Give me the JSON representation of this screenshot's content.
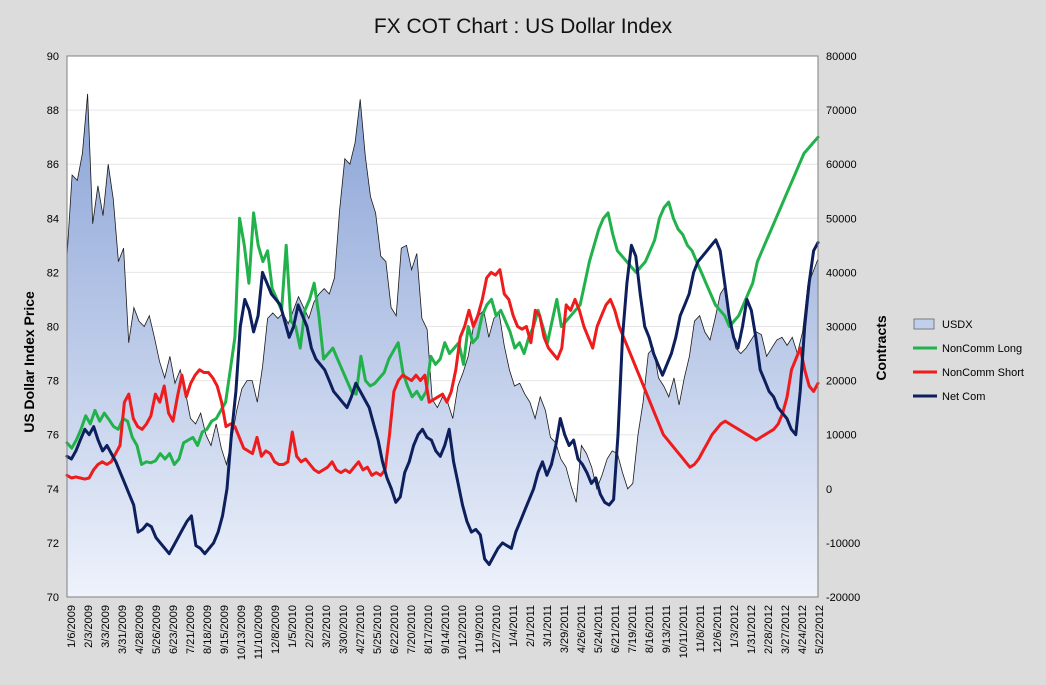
{
  "chart_data": {
    "type": "line",
    "title": "FX COT Chart : US Dollar Index",
    "ylabel": "US Dollar Index Price",
    "y2label": "Contracts",
    "ylim": [
      70,
      90
    ],
    "y2lim": [
      -20000,
      80000
    ],
    "y_ticks": [
      "70",
      "72",
      "74",
      "76",
      "78",
      "80",
      "82",
      "84",
      "86",
      "88",
      "90"
    ],
    "y2_ticks": [
      "-20000",
      "-10000",
      "0",
      "10000",
      "20000",
      "30000",
      "40000",
      "50000",
      "60000",
      "70000",
      "80000"
    ],
    "x_ticks": [
      "1/6/2009",
      "2/3/2009",
      "3/3/2009",
      "3/31/2009",
      "4/28/2009",
      "5/26/2009",
      "6/23/2009",
      "7/21/2009",
      "8/18/2009",
      "9/15/2009",
      "10/13/2009",
      "11/10/2009",
      "12/8/2009",
      "1/5/2010",
      "2/2/2010",
      "3/2/2010",
      "3/30/2010",
      "4/27/2010",
      "5/25/2010",
      "6/22/2010",
      "7/20/2010",
      "8/17/2010",
      "9/14/2010",
      "10/12/2010",
      "11/9/2010",
      "12/7/2010",
      "1/4/2011",
      "2/1/2011",
      "3/1/2011",
      "3/29/2011",
      "4/26/2011",
      "5/24/2011",
      "6/21/2011",
      "7/19/2011",
      "8/16/2011",
      "9/13/2011",
      "10/11/2011",
      "11/8/2011",
      "12/6/2011",
      "1/3/2012",
      "1/31/2012",
      "2/28/2012",
      "3/27/2012",
      "4/24/2012",
      "5/22/2012"
    ],
    "legend_position": "right",
    "series": [
      {
        "name": "USDX",
        "axis": "left",
        "style": "area",
        "color": "#8fa8d8",
        "values": [
          82.6,
          85.6,
          85.4,
          86.4,
          88.6,
          83.8,
          85.2,
          84.1,
          86.0,
          84.7,
          82.4,
          82.9,
          79.4,
          80.7,
          80.2,
          80.0,
          80.4,
          79.6,
          78.7,
          78.1,
          78.9,
          77.9,
          78.4,
          77.6,
          76.6,
          76.4,
          76.8,
          76.0,
          75.6,
          76.4,
          75.5,
          74.9,
          75.8,
          76.9,
          77.7,
          78.0,
          78.0,
          77.2,
          78.5,
          80.3,
          80.5,
          80.3,
          80.5,
          80.1,
          80.6,
          81.1,
          80.7,
          80.3,
          80.9,
          81.2,
          81.4,
          81.2,
          81.8,
          84.3,
          86.2,
          86.0,
          86.8,
          88.4,
          86.3,
          84.8,
          84.2,
          82.6,
          82.4,
          80.7,
          80.4,
          82.9,
          83.0,
          82.1,
          82.7,
          80.3,
          79.9,
          77.3,
          77.0,
          77.4,
          77.2,
          76.6,
          77.8,
          78.3,
          78.9,
          80.0,
          80.4,
          80.6,
          79.6,
          80.3,
          80.5,
          79.3,
          78.4,
          77.8,
          77.9,
          77.5,
          77.2,
          76.6,
          77.4,
          76.9,
          75.9,
          75.7,
          75.1,
          74.8,
          74.1,
          73.5,
          75.6,
          75.3,
          74.8,
          74.0,
          74.5,
          75.1,
          75.4,
          75.3,
          74.6,
          74.0,
          74.2,
          76.0,
          77.2,
          79.0,
          79.2,
          78.1,
          77.8,
          77.4,
          78.1,
          77.1,
          78.1,
          78.9,
          80.2,
          80.4,
          79.8,
          79.5,
          80.3,
          81.2,
          81.5,
          80.2,
          79.2,
          79.0,
          79.2,
          79.5,
          79.8,
          79.7,
          78.9,
          79.2,
          79.5,
          79.6,
          79.3,
          79.6,
          79.0,
          79.8,
          81.5,
          82.0,
          82.5
        ]
      },
      {
        "name": "NonComm Long",
        "axis": "right",
        "style": "line",
        "color": "#22b24c",
        "values": [
          8500,
          7500,
          9000,
          11000,
          13500,
          12000,
          14500,
          12500,
          14000,
          12800,
          11500,
          11000,
          13000,
          12500,
          9500,
          8000,
          4500,
          5000,
          4800,
          5200,
          6500,
          5500,
          6500,
          4500,
          5500,
          8500,
          9000,
          9500,
          8000,
          10500,
          11000,
          12500,
          13000,
          14500,
          16000,
          22000,
          28000,
          50000,
          45000,
          38000,
          51000,
          45000,
          42000,
          44000,
          37000,
          35000,
          33000,
          45000,
          31000,
          30000,
          26000,
          33000,
          35000,
          38000,
          32000,
          24000,
          25000,
          26000,
          24000,
          22000,
          20000,
          18000,
          17500,
          24500,
          20000,
          19000,
          19500,
          20500,
          21500,
          24000,
          25500,
          27000,
          21500,
          19000,
          17000,
          18000,
          16500,
          18000,
          24500,
          23000,
          24000,
          27000,
          25000,
          26000,
          27000,
          23000,
          30000,
          27000,
          28000,
          32000,
          34000,
          35000,
          32000,
          33000,
          31000,
          29000,
          26000,
          27000,
          25000,
          28000,
          30000,
          33000,
          30000,
          27000,
          31000,
          35000,
          30000,
          31000,
          32000,
          33000,
          34000,
          38000,
          42000,
          45000,
          48000,
          50000,
          51000,
          47000,
          44000,
          43000,
          42000,
          41000,
          40000,
          41000,
          42000,
          44000,
          46000,
          50000,
          52000,
          53000,
          50000,
          48000,
          47000,
          45000,
          44000,
          42000,
          40000,
          38000,
          36000,
          34000,
          33000,
          32000,
          30000,
          31000,
          32000,
          34000,
          36000,
          38000,
          42000,
          44000,
          46000,
          48000,
          50000,
          52000,
          54000,
          56000,
          58000,
          60000,
          62000,
          63000,
          64000,
          65000
        ]
      },
      {
        "name": "NonComm Short",
        "axis": "right",
        "style": "line",
        "color": "#ee1c1c",
        "values": [
          2500,
          2000,
          2200,
          2000,
          1800,
          2000,
          3500,
          4500,
          5000,
          4500,
          5000,
          6500,
          8000,
          16000,
          17500,
          13000,
          11500,
          11000,
          12000,
          13500,
          17500,
          16000,
          19000,
          14000,
          12500,
          17000,
          21000,
          17000,
          19500,
          21000,
          22000,
          21500,
          21500,
          20500,
          19000,
          16000,
          11500,
          12000,
          11500,
          9500,
          7500,
          7000,
          6500,
          9500,
          6000,
          7000,
          6500,
          5000,
          4500,
          4500,
          5000,
          10500,
          6000,
          5000,
          5500,
          4500,
          3500,
          3000,
          3500,
          4000,
          5000,
          3500,
          3000,
          3500,
          3000,
          4000,
          5000,
          3500,
          4000,
          2500,
          3000,
          2500,
          3500,
          10000,
          18000,
          20000,
          21000,
          20500,
          20000,
          21000,
          20000,
          21000,
          16000,
          16500,
          17000,
          17500,
          16000,
          18000,
          22000,
          28000,
          30000,
          33000,
          30000,
          32000,
          35000,
          39000,
          40000,
          39500,
          40500,
          36000,
          35000,
          32000,
          30000,
          29500,
          30000,
          27000,
          33000,
          32000,
          28000,
          26000,
          25000,
          24000,
          26000,
          34000,
          33000,
          35000,
          33000,
          30000,
          28000,
          26000,
          30000,
          32000,
          34000,
          35000,
          33000,
          30000,
          28000,
          26000,
          24000,
          22000,
          20000,
          18000,
          16000,
          14000,
          12000,
          10000,
          9000,
          8000,
          7000,
          6000,
          5000,
          4000,
          4500,
          5500,
          7000,
          8500,
          10000,
          11000,
          12000,
          12500,
          12000,
          11500,
          11000,
          10500,
          10000,
          9500,
          9000,
          9500,
          10000,
          10500,
          11000,
          12000,
          14000,
          17000,
          22000,
          24000,
          26000,
          22000,
          19000,
          18000,
          19500
        ]
      },
      {
        "name": "Net Com",
        "axis": "right",
        "style": "line",
        "color": "#0d1f5c",
        "values": [
          6000,
          5500,
          7000,
          9000,
          11000,
          10000,
          11500,
          9000,
          7000,
          8000,
          6500,
          5000,
          3000,
          1000,
          -1000,
          -3000,
          -8000,
          -7500,
          -6500,
          -7000,
          -9000,
          -10000,
          -11000,
          -12000,
          -10500,
          -9000,
          -7500,
          -6000,
          -5000,
          -10500,
          -11000,
          -12000,
          -11000,
          -10000,
          -8000,
          -5000,
          0,
          10000,
          18000,
          30000,
          35000,
          33000,
          29000,
          32000,
          40000,
          38000,
          36000,
          35000,
          34000,
          31000,
          28000,
          30000,
          34000,
          32000,
          30000,
          26000,
          24000,
          23000,
          22000,
          20000,
          18000,
          17000,
          16000,
          15000,
          17000,
          19500,
          18000,
          16500,
          15000,
          12000,
          9000,
          5000,
          2000,
          0,
          -2500,
          -1500,
          3000,
          5000,
          8000,
          10000,
          11000,
          9500,
          9000,
          7000,
          6000,
          8000,
          11000,
          5000,
          1000,
          -3000,
          -6000,
          -8000,
          -7500,
          -8500,
          -13000,
          -14000,
          -12500,
          -11000,
          -10000,
          -10500,
          -11000,
          -8000,
          -6000,
          -4000,
          -2000,
          0,
          3000,
          5000,
          2500,
          4500,
          8000,
          13000,
          10000,
          8000,
          9000,
          5500,
          4500,
          3000,
          1000,
          2000,
          -1000,
          -2500,
          -3000,
          -2000,
          10000,
          28000,
          38000,
          45000,
          43000,
          36000,
          30000,
          28000,
          25000,
          23000,
          21000,
          23000,
          25000,
          28000,
          32000,
          34000,
          36000,
          40000,
          42000,
          43000,
          44000,
          45000,
          46000,
          44000,
          38000,
          32000,
          28000,
          26000,
          30000,
          35000,
          33000,
          28000,
          22000,
          20000,
          18000,
          17000,
          15000,
          14000,
          13000,
          11000,
          10000,
          18000,
          30000,
          38000,
          44000,
          45500
        ]
      }
    ]
  }
}
